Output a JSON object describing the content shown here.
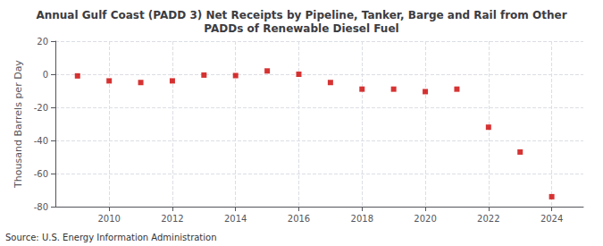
{
  "chart_data": {
    "type": "scatter",
    "title": "Annual Gulf Coast (PADD 3) Net Receipts by Pipeline, Tanker, Barge and Rail from Other\nPADDs of Renewable Diesel Fuel",
    "y_label": "Thousand Barrels per Day",
    "annotations": [
      "Source: U.S. Energy Information Administration"
    ],
    "x": [
      2009,
      2010,
      2011,
      2012,
      2013,
      2014,
      2015,
      2016,
      2017,
      2018,
      2019,
      2020,
      2021,
      2022,
      2023,
      2024
    ],
    "values": [
      -1.0,
      -4.0,
      -5.0,
      -4.0,
      -0.5,
      -0.8,
      2.0,
      0.0,
      -5.0,
      -9.0,
      -9.0,
      -10.5,
      -9.0,
      -32.0,
      -47.0,
      -74.0
    ],
    "color": "#CC0000",
    "marker": "square",
    "xlim": [
      2008.3,
      2025.0
    ],
    "xticks": [
      2010,
      2012,
      2014,
      2016,
      2018,
      2020,
      2022,
      2024
    ],
    "ylim": [
      -80,
      20
    ],
    "yticks": [
      -80,
      -60,
      -40,
      -20,
      0,
      20
    ],
    "grid": true
  }
}
